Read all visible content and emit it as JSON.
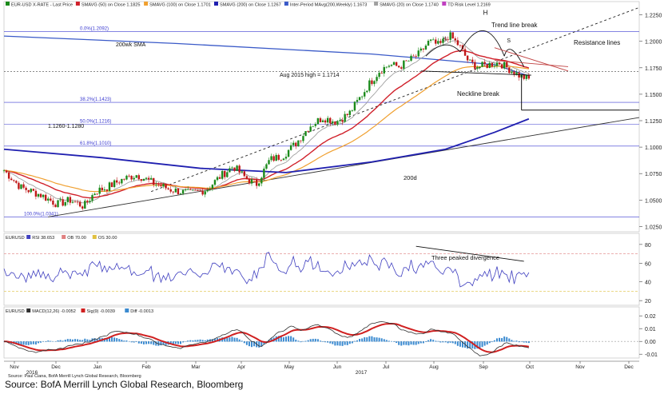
{
  "chart_data": [
    {
      "type": "candlestick",
      "panel": "price",
      "legend": [
        {
          "label": "EUR-USD X-RATE - Last Price",
          "color": "#1a8a1a"
        },
        {
          "label": "SMAVG (50) on Close 1.1825",
          "color": "#d0202a"
        },
        {
          "label": "SMAVG (100) on Close 1.1701",
          "color": "#f0a030"
        },
        {
          "label": "SMAVG (200) on Close 1.1267",
          "color": "#2020b0"
        },
        {
          "label": "Inter-Period MAvg(200,Weekly) 1.1673",
          "color": "#3a5ac8"
        },
        {
          "label": "SMAVG (20) on Close 1.1740",
          "color": "#a0a0a0"
        },
        {
          "label": "TD Risk Level 1.2169",
          "color": "#c040c0"
        }
      ],
      "ylim": [
        1.02,
        1.23
      ],
      "y_ticks": [
        "1.2250",
        "1.2000",
        "1.1750",
        "1.1500",
        "1.1250",
        "1.1000",
        "1.0750",
        "1.0500",
        "1.0250"
      ],
      "fib_levels": [
        {
          "label": "0.0%(1.2092)",
          "value": 1.2092
        },
        {
          "label": "38.2%(1.1423)",
          "value": 1.1423
        },
        {
          "label": "50.0%(1.1216)",
          "value": 1.1216
        },
        {
          "label": "61.8%(1.1010)",
          "value": 1.101
        },
        {
          "label": "100.0%(1.0341)",
          "value": 1.0341
        }
      ],
      "annotations": [
        "200wk SMA",
        "Aug 2015 high = 1.1714",
        "1.1260-1.1280",
        "200d",
        "Trend line break",
        "Resistance lines",
        "Neckline break",
        "H",
        "S",
        "S"
      ],
      "key_points": [
        {
          "date": "2016-12",
          "close": 1.04
        },
        {
          "date": "2017-01",
          "close": 1.07
        },
        {
          "date": "2017-02",
          "close": 1.055
        },
        {
          "date": "2017-03",
          "close": 1.075
        },
        {
          "date": "2017-04",
          "close": 1.065
        },
        {
          "date": "2017-05",
          "close": 1.12
        },
        {
          "date": "2017-06",
          "close": 1.14
        },
        {
          "date": "2017-07",
          "close": 1.175
        },
        {
          "date": "2017-08",
          "close": 1.18
        },
        {
          "date": "2017-09",
          "close": 1.2
        },
        {
          "date": "2017-10",
          "close": 1.165
        }
      ]
    },
    {
      "type": "line",
      "panel": "rsi",
      "legend": [
        {
          "label": "EURUSD",
          "color": "#333333"
        },
        {
          "label": "RSI 38.653",
          "color": "#4040c0"
        },
        {
          "label": "OB 70.00",
          "color": "#e08080"
        },
        {
          "label": "OS 30.00",
          "color": "#e0c040"
        }
      ],
      "ylim": [
        15,
        85
      ],
      "y_ticks": [
        "80",
        "60",
        "40",
        "20"
      ],
      "annotations": [
        "Three peaked divergence"
      ]
    },
    {
      "type": "line",
      "panel": "macd",
      "legend": [
        {
          "label": "EURUSD",
          "color": "#333333"
        },
        {
          "label": "MACD(12,26) -0.0052",
          "color": "#303030"
        },
        {
          "label": "Sig(9) -0.0039",
          "color": "#d02020"
        },
        {
          "label": "Diff -0.0013",
          "color": "#3a8ad0"
        }
      ],
      "ylim": [
        -0.013,
        0.022
      ],
      "y_ticks": [
        "0.02",
        "0.01",
        "0.00",
        "-0.01"
      ]
    }
  ],
  "x_axis": {
    "months": [
      "Nov",
      "Dec",
      "Jan",
      "Feb",
      "Mar",
      "Apr",
      "May",
      "Jun",
      "Jul",
      "Aug",
      "Sep",
      "Oct",
      "Nov",
      "Dec"
    ],
    "years": [
      "2016",
      "2017"
    ]
  },
  "footer": {
    "small_source": "Source: Paul Ciana, BofA Merrill Lynch Global Research, Bloomberg",
    "source": "Source: BofA Merrill Lynch Global Research, Bloomberg"
  }
}
